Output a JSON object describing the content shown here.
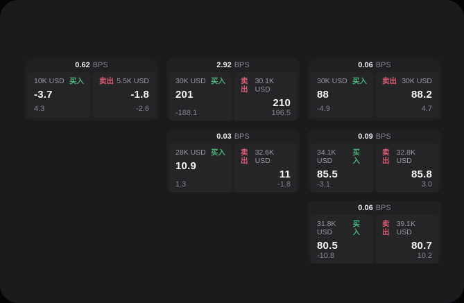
{
  "theme": {
    "panel_bg": "#1b1b1d",
    "card_bg": "#202023",
    "subpanel_bg": "#252528",
    "buy_color": "#4caf78",
    "sell_color": "#d95d73"
  },
  "labels": {
    "bps_unit": "BPS",
    "buy": "买入",
    "sell": "卖出"
  },
  "cards": [
    {
      "row": 1,
      "col": 1,
      "bps": "0.62",
      "buy": {
        "size": "10K USD",
        "value": "-3.7",
        "footer": "4.3"
      },
      "sell": {
        "size": "5.5K USD",
        "value": "-1.8",
        "footer": "-2.6"
      }
    },
    {
      "row": 1,
      "col": 2,
      "bps": "2.92",
      "buy": {
        "size": "30K USD",
        "value": "201",
        "footer": "-188.1"
      },
      "sell": {
        "size": "30.1K USD",
        "value": "210",
        "footer": "196.5"
      }
    },
    {
      "row": 1,
      "col": 3,
      "bps": "0.06",
      "buy": {
        "size": "30K USD",
        "value": "88",
        "footer": "-4.9"
      },
      "sell": {
        "size": "30K USD",
        "value": "88.2",
        "footer": "4.7"
      }
    },
    {
      "row": 2,
      "col": 2,
      "bps": "0.03",
      "buy": {
        "size": "28K USD",
        "value": "10.9",
        "footer": "1.3"
      },
      "sell": {
        "size": "32.6K USD",
        "value": "11",
        "footer": "-1.8"
      }
    },
    {
      "row": 2,
      "col": 3,
      "bps": "0.09",
      "buy": {
        "size": "34.1K USD",
        "value": "85.5",
        "footer": "-3.1"
      },
      "sell": {
        "size": "32.8K USD",
        "value": "85.8",
        "footer": "3.0"
      }
    },
    {
      "row": 3,
      "col": 3,
      "bps": "0.06",
      "buy": {
        "size": "31.8K USD",
        "value": "80.5",
        "footer": "-10.8"
      },
      "sell": {
        "size": "39.1K USD",
        "value": "80.7",
        "footer": "10.2"
      }
    }
  ]
}
